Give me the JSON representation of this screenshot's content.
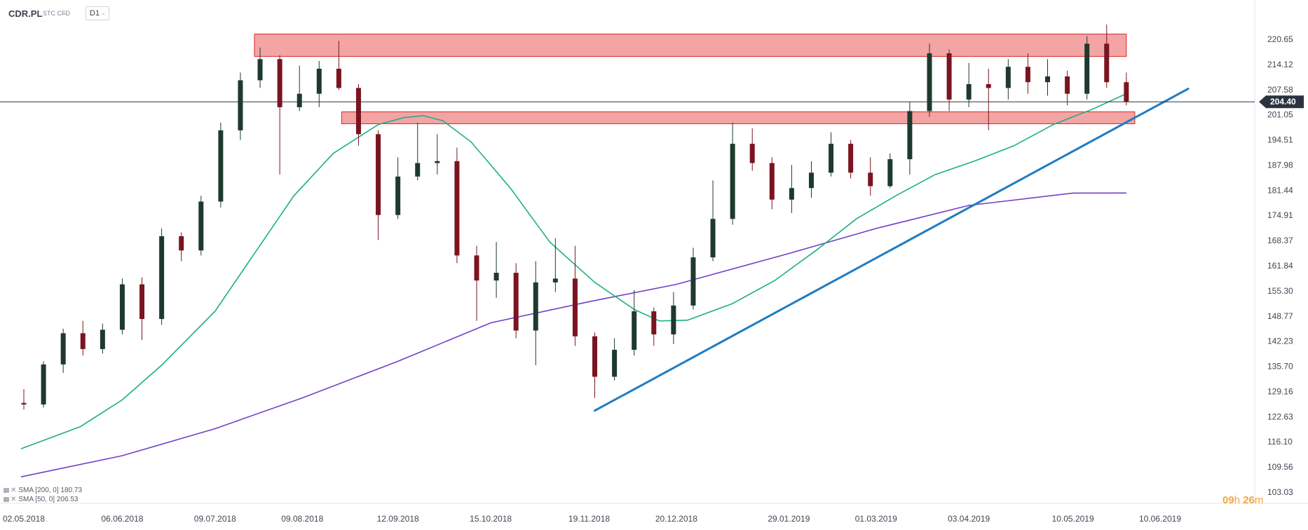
{
  "header": {
    "symbol": "CDR.PL",
    "instrument_type": "STC CFD",
    "timeframe": "D1"
  },
  "price_axis": {
    "ticks": [
      "220.65",
      "214.12",
      "207.58",
      "201.05",
      "194.51",
      "187.98",
      "181.44",
      "174.91",
      "168.37",
      "161.84",
      "155.30",
      "148.77",
      "142.23",
      "135.70",
      "129.16",
      "122.63",
      "116.10",
      "109.56",
      "103.03"
    ],
    "current_price": "204.40"
  },
  "date_axis": {
    "ticks": [
      "02.05.2018",
      "06.06.2018",
      "09.07.2018",
      "09.08.2018",
      "12.09.2018",
      "15.10.2018",
      "19.11.2018",
      "20.12.2018",
      "29.01.2019",
      "01.03.2019",
      "03.04.2019",
      "10.05.2019",
      "10.06.2019"
    ]
  },
  "legend": {
    "sma200": "SMA  [200, 0]  180.73",
    "sma50": "SMA  [50, 0]  206.53"
  },
  "timer": {
    "hours": "09",
    "h_unit": "h",
    "minutes": "26",
    "m_unit": "m"
  },
  "colors": {
    "bull_candle": "#1e3a2c",
    "bear_candle": "#7a1420",
    "sma50": "#1cb07f",
    "sma200": "#6f3fc7",
    "trendline": "#1f7cc2",
    "zone_fill": "#ef8585",
    "zone_stroke": "#d62b2b",
    "current_price_badge": "#2c3340"
  },
  "chart_data": {
    "type": "candlestick",
    "title": "CDR.PL",
    "timeframe": "D1",
    "ylim": [
      103.03,
      227.0
    ],
    "x_range": [
      "2018-04-30",
      "2019-06-20"
    ],
    "current_price": 204.4,
    "ohlc": [
      {
        "date": "2018-05-02",
        "o": 126.2,
        "h": 129.8,
        "l": 124.5,
        "c": 125.8
      },
      {
        "date": "2018-05-09",
        "o": 125.8,
        "h": 137.0,
        "l": 125.0,
        "c": 136.2
      },
      {
        "date": "2018-05-16",
        "o": 136.2,
        "h": 145.5,
        "l": 134.0,
        "c": 144.3
      },
      {
        "date": "2018-05-23",
        "o": 144.3,
        "h": 147.5,
        "l": 138.5,
        "c": 140.2
      },
      {
        "date": "2018-05-30",
        "o": 140.2,
        "h": 146.8,
        "l": 139.0,
        "c": 145.2
      },
      {
        "date": "2018-06-06",
        "o": 145.2,
        "h": 158.5,
        "l": 144.0,
        "c": 157.0
      },
      {
        "date": "2018-06-13",
        "o": 157.0,
        "h": 158.8,
        "l": 142.5,
        "c": 148.0
      },
      {
        "date": "2018-06-20",
        "o": 148.0,
        "h": 171.5,
        "l": 146.5,
        "c": 169.5
      },
      {
        "date": "2018-06-27",
        "o": 169.5,
        "h": 170.5,
        "l": 163.0,
        "c": 165.8
      },
      {
        "date": "2018-07-04",
        "o": 165.8,
        "h": 180.0,
        "l": 164.5,
        "c": 178.5
      },
      {
        "date": "2018-07-11",
        "o": 178.5,
        "h": 199.0,
        "l": 177.0,
        "c": 197.0
      },
      {
        "date": "2018-07-18",
        "o": 197.0,
        "h": 212.0,
        "l": 194.5,
        "c": 210.0
      },
      {
        "date": "2018-07-25",
        "o": 210.0,
        "h": 218.5,
        "l": 208.0,
        "c": 215.5
      },
      {
        "date": "2018-08-01",
        "o": 215.5,
        "h": 216.5,
        "l": 185.5,
        "c": 203.0
      },
      {
        "date": "2018-08-08",
        "o": 203.0,
        "h": 213.8,
        "l": 202.0,
        "c": 206.5
      },
      {
        "date": "2018-08-15",
        "o": 206.5,
        "h": 215.0,
        "l": 203.0,
        "c": 213.0
      },
      {
        "date": "2018-08-22",
        "o": 213.0,
        "h": 220.2,
        "l": 207.5,
        "c": 208.0
      },
      {
        "date": "2018-08-29",
        "o": 208.0,
        "h": 209.0,
        "l": 193.0,
        "c": 196.0
      },
      {
        "date": "2018-09-05",
        "o": 196.0,
        "h": 197.0,
        "l": 168.5,
        "c": 175.0
      },
      {
        "date": "2018-09-12",
        "o": 175.0,
        "h": 190.0,
        "l": 174.0,
        "c": 185.0
      },
      {
        "date": "2018-09-19",
        "o": 185.0,
        "h": 199.0,
        "l": 184.0,
        "c": 188.5
      },
      {
        "date": "2018-09-26",
        "o": 188.5,
        "h": 196.0,
        "l": 185.5,
        "c": 189.0
      },
      {
        "date": "2018-10-03",
        "o": 189.0,
        "h": 192.5,
        "l": 162.5,
        "c": 164.5
      },
      {
        "date": "2018-10-10",
        "o": 164.5,
        "h": 167.0,
        "l": 147.5,
        "c": 158.0
      },
      {
        "date": "2018-10-17",
        "o": 158.0,
        "h": 168.0,
        "l": 153.5,
        "c": 160.0
      },
      {
        "date": "2018-10-24",
        "o": 160.0,
        "h": 162.5,
        "l": 143.0,
        "c": 145.0
      },
      {
        "date": "2018-10-31",
        "o": 145.0,
        "h": 163.0,
        "l": 136.0,
        "c": 157.5
      },
      {
        "date": "2018-11-07",
        "o": 157.5,
        "h": 169.0,
        "l": 155.0,
        "c": 158.5
      },
      {
        "date": "2018-11-14",
        "o": 158.5,
        "h": 167.0,
        "l": 141.0,
        "c": 143.5
      },
      {
        "date": "2018-11-21",
        "o": 143.5,
        "h": 144.5,
        "l": 127.5,
        "c": 133.0
      },
      {
        "date": "2018-11-28",
        "o": 133.0,
        "h": 143.0,
        "l": 132.0,
        "c": 140.0
      },
      {
        "date": "2018-12-05",
        "o": 140.0,
        "h": 155.5,
        "l": 138.5,
        "c": 150.0
      },
      {
        "date": "2018-12-12",
        "o": 150.0,
        "h": 151.0,
        "l": 141.0,
        "c": 144.0
      },
      {
        "date": "2018-12-19",
        "o": 144.0,
        "h": 155.0,
        "l": 141.5,
        "c": 151.5
      },
      {
        "date": "2018-12-26",
        "o": 151.5,
        "h": 166.5,
        "l": 150.5,
        "c": 164.0
      },
      {
        "date": "2019-01-02",
        "o": 164.0,
        "h": 184.0,
        "l": 163.0,
        "c": 174.0
      },
      {
        "date": "2019-01-09",
        "o": 174.0,
        "h": 199.0,
        "l": 172.5,
        "c": 193.5
      },
      {
        "date": "2019-01-16",
        "o": 193.5,
        "h": 197.5,
        "l": 186.5,
        "c": 188.5
      },
      {
        "date": "2019-01-23",
        "o": 188.5,
        "h": 190.0,
        "l": 176.5,
        "c": 179.0
      },
      {
        "date": "2019-01-30",
        "o": 179.0,
        "h": 188.0,
        "l": 175.5,
        "c": 182.0
      },
      {
        "date": "2019-02-06",
        "o": 182.0,
        "h": 189.0,
        "l": 179.5,
        "c": 186.0
      },
      {
        "date": "2019-02-13",
        "o": 186.0,
        "h": 196.5,
        "l": 185.0,
        "c": 193.5
      },
      {
        "date": "2019-02-20",
        "o": 193.5,
        "h": 194.5,
        "l": 184.5,
        "c": 186.0
      },
      {
        "date": "2019-02-27",
        "o": 186.0,
        "h": 190.0,
        "l": 180.0,
        "c": 182.5
      },
      {
        "date": "2019-03-06",
        "o": 182.5,
        "h": 191.0,
        "l": 182.0,
        "c": 189.5
      },
      {
        "date": "2019-03-13",
        "o": 189.5,
        "h": 204.5,
        "l": 185.5,
        "c": 202.0
      },
      {
        "date": "2019-03-20",
        "o": 202.0,
        "h": 219.5,
        "l": 200.5,
        "c": 217.0
      },
      {
        "date": "2019-03-27",
        "o": 217.0,
        "h": 218.0,
        "l": 202.0,
        "c": 205.0
      },
      {
        "date": "2019-04-03",
        "o": 205.0,
        "h": 214.5,
        "l": 203.0,
        "c": 209.0
      },
      {
        "date": "2019-04-10",
        "o": 209.0,
        "h": 213.0,
        "l": 197.0,
        "c": 208.0
      },
      {
        "date": "2019-04-17",
        "o": 208.0,
        "h": 215.5,
        "l": 205.0,
        "c": 213.5
      },
      {
        "date": "2019-04-24",
        "o": 213.5,
        "h": 217.0,
        "l": 206.5,
        "c": 209.5
      },
      {
        "date": "2019-05-01",
        "o": 209.5,
        "h": 215.5,
        "l": 206.0,
        "c": 211.0
      },
      {
        "date": "2019-05-08",
        "o": 211.0,
        "h": 212.5,
        "l": 203.5,
        "c": 206.5
      },
      {
        "date": "2019-05-15",
        "o": 206.5,
        "h": 221.5,
        "l": 205.0,
        "c": 219.5
      },
      {
        "date": "2019-05-22",
        "o": 219.5,
        "h": 224.5,
        "l": 208.0,
        "c": 209.5
      },
      {
        "date": "2019-05-29",
        "o": 209.5,
        "h": 212.0,
        "l": 203.5,
        "c": 204.4
      }
    ],
    "sma50": [
      {
        "date": "2018-05-01",
        "v": 114.3
      },
      {
        "date": "2018-05-22",
        "v": 120.0
      },
      {
        "date": "2018-06-06",
        "v": 127.0
      },
      {
        "date": "2018-06-20",
        "v": 136.0
      },
      {
        "date": "2018-07-09",
        "v": 150.0
      },
      {
        "date": "2018-07-23",
        "v": 165.0
      },
      {
        "date": "2018-08-06",
        "v": 180.0
      },
      {
        "date": "2018-08-20",
        "v": 191.0
      },
      {
        "date": "2018-09-05",
        "v": 198.5
      },
      {
        "date": "2018-09-14",
        "v": 200.3
      },
      {
        "date": "2018-09-21",
        "v": 200.8
      },
      {
        "date": "2018-09-28",
        "v": 199.5
      },
      {
        "date": "2018-10-08",
        "v": 194.0
      },
      {
        "date": "2018-10-22",
        "v": 182.0
      },
      {
        "date": "2018-11-05",
        "v": 168.0
      },
      {
        "date": "2018-11-21",
        "v": 157.5
      },
      {
        "date": "2018-12-05",
        "v": 150.5
      },
      {
        "date": "2018-12-14",
        "v": 147.5
      },
      {
        "date": "2018-12-24",
        "v": 147.7
      },
      {
        "date": "2019-01-09",
        "v": 152.0
      },
      {
        "date": "2019-01-24",
        "v": 158.0
      },
      {
        "date": "2019-02-08",
        "v": 166.0
      },
      {
        "date": "2019-02-22",
        "v": 174.0
      },
      {
        "date": "2019-03-08",
        "v": 180.0
      },
      {
        "date": "2019-03-22",
        "v": 185.5
      },
      {
        "date": "2019-04-05",
        "v": 189.0
      },
      {
        "date": "2019-04-19",
        "v": 193.0
      },
      {
        "date": "2019-05-03",
        "v": 198.5
      },
      {
        "date": "2019-05-17",
        "v": 202.5
      },
      {
        "date": "2019-05-29",
        "v": 206.53
      }
    ],
    "sma200": [
      {
        "date": "2018-05-01",
        "v": 107.0
      },
      {
        "date": "2018-06-06",
        "v": 112.5
      },
      {
        "date": "2018-07-09",
        "v": 119.5
      },
      {
        "date": "2018-08-09",
        "v": 127.5
      },
      {
        "date": "2018-09-12",
        "v": 137.0
      },
      {
        "date": "2018-10-15",
        "v": 147.0
      },
      {
        "date": "2018-11-19",
        "v": 152.5
      },
      {
        "date": "2018-12-20",
        "v": 157.0
      },
      {
        "date": "2019-01-29",
        "v": 165.0
      },
      {
        "date": "2019-03-01",
        "v": 171.5
      },
      {
        "date": "2019-04-03",
        "v": 177.5
      },
      {
        "date": "2019-05-10",
        "v": 180.7
      },
      {
        "date": "2019-05-29",
        "v": 180.73
      }
    ],
    "zones": [
      {
        "from": "2018-07-23",
        "to": "2019-05-29",
        "low": 216.2,
        "high": 222.0
      },
      {
        "from": "2018-08-23",
        "to": "2019-06-01",
        "low": 198.7,
        "high": 201.8
      }
    ],
    "trendline": {
      "from": {
        "date": "2018-11-21",
        "v": 124.2
      },
      "to": {
        "date": "2019-06-20",
        "v": 207.8
      }
    }
  }
}
